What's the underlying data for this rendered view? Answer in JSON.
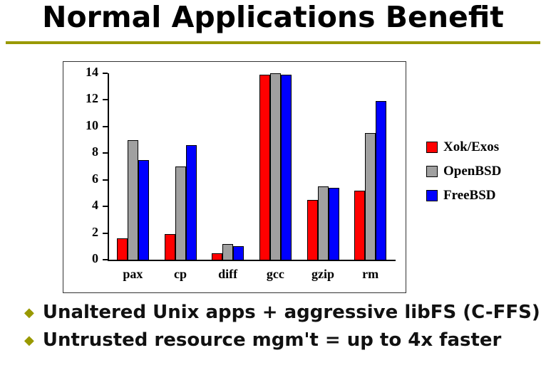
{
  "slide": {
    "title": "Normal Applications Benefit",
    "accent_color": "#999900",
    "bullets": [
      {
        "marker": "◆",
        "text": "Unaltered Unix apps + aggressive libFS (C-FFS)"
      },
      {
        "marker": "◆",
        "text": "Untrusted resource mgm't = up to 4x faster"
      }
    ]
  },
  "chart_data": {
    "type": "bar",
    "title": "",
    "xlabel": "",
    "ylabel": "",
    "categories": [
      "pax",
      "cp",
      "diff",
      "gcc",
      "gzip",
      "rm"
    ],
    "series": [
      {
        "name": "Xok/Exos",
        "color": "#ff0000",
        "values": [
          1.6,
          1.9,
          0.5,
          13.9,
          4.5,
          5.2
        ]
      },
      {
        "name": "OpenBSD",
        "color": "#a0a0a0",
        "values": [
          9.0,
          7.0,
          1.2,
          14.0,
          5.5,
          9.5
        ]
      },
      {
        "name": "FreeBSD",
        "color": "#0000ff",
        "values": [
          7.5,
          8.6,
          1.0,
          13.9,
          5.4,
          11.9
        ]
      }
    ],
    "ylim": [
      0,
      14
    ],
    "yticks": [
      0,
      2,
      4,
      6,
      8,
      10,
      12,
      14
    ],
    "grid": false,
    "legend_position": "right"
  }
}
